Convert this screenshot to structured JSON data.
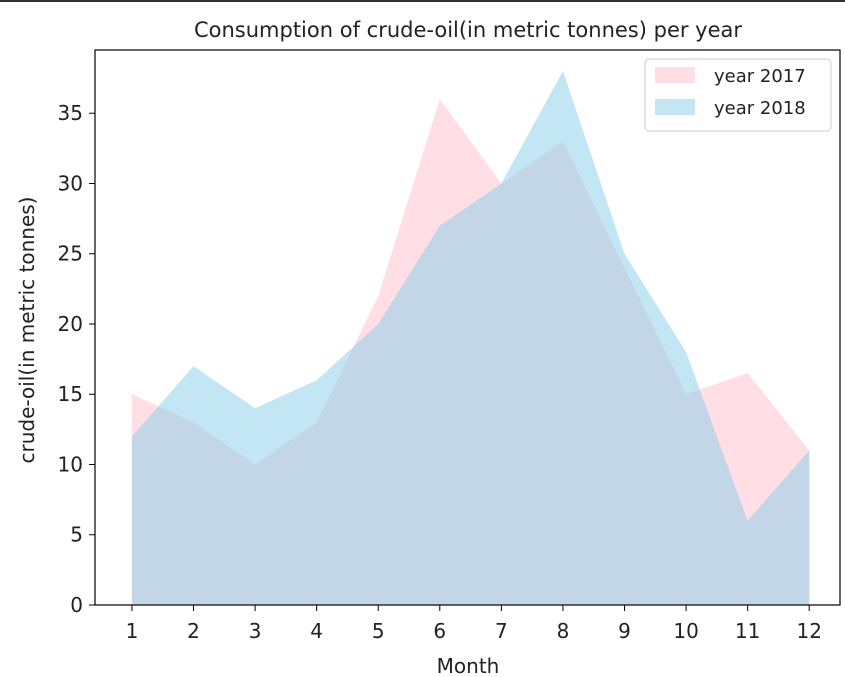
{
  "chart_data": {
    "type": "area",
    "title": "Consumption of crude-oil(in metric tonnes) per year",
    "xlabel": "Month",
    "ylabel": "crude-oil(in metric tonnes)",
    "x": [
      1,
      2,
      3,
      4,
      5,
      6,
      7,
      8,
      9,
      10,
      11,
      12
    ],
    "xlim": [
      0.4,
      12.5
    ],
    "ylim": [
      0,
      39.5
    ],
    "yticks": [
      0,
      5,
      10,
      15,
      20,
      25,
      30,
      35
    ],
    "grid": false,
    "legend_position": "top-right",
    "series": [
      {
        "name": "year 2017",
        "color": "#FFC0CB",
        "values": [
          15,
          13,
          10,
          13,
          22,
          36,
          30,
          33,
          24,
          15,
          16.5,
          11
        ]
      },
      {
        "name": "year 2018",
        "color": "#87CEEB",
        "values": [
          12,
          17,
          14,
          16,
          20,
          27,
          30,
          38,
          25,
          18,
          6,
          11
        ]
      }
    ]
  }
}
